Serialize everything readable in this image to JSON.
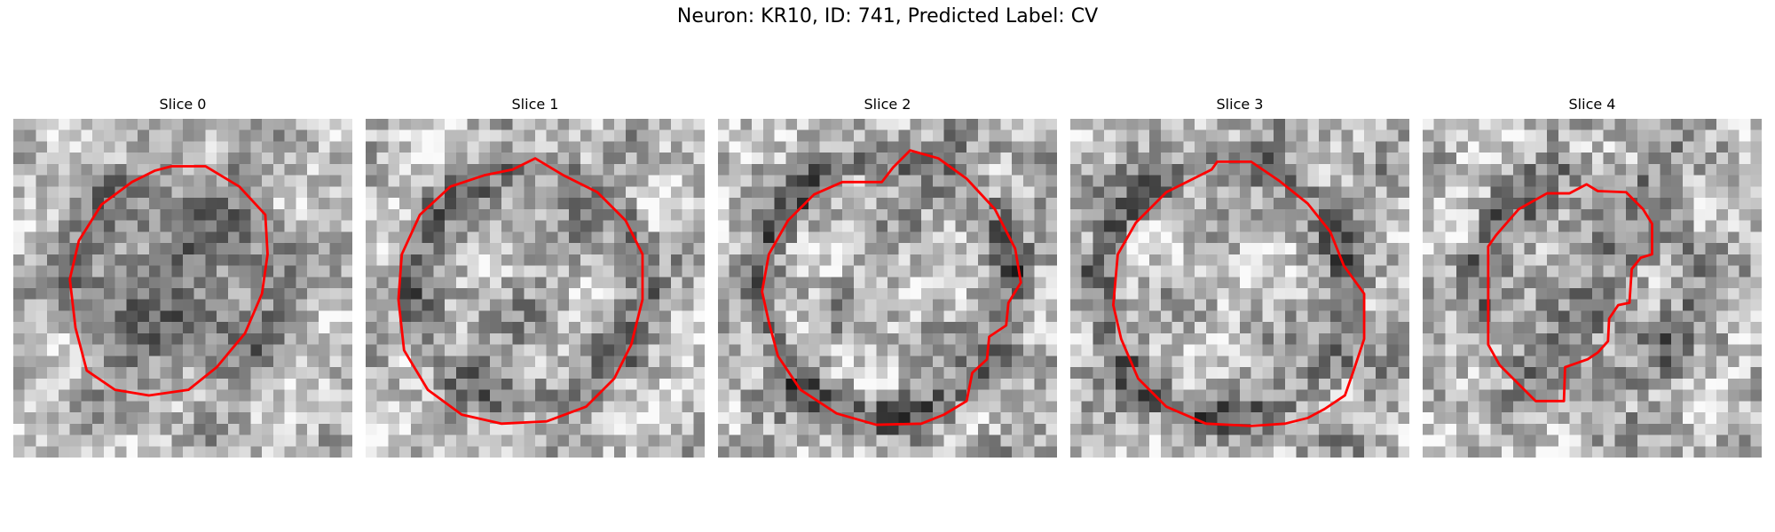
{
  "figure": {
    "title": "Neuron: KR10, ID: 741, Predicted Label: CV"
  },
  "slices": [
    {
      "title": "Slice 0"
    },
    {
      "title": "Slice 1"
    },
    {
      "title": "Slice 2"
    },
    {
      "title": "Slice 3"
    },
    {
      "title": "Slice 4"
    }
  ],
  "colors": {
    "contour": "#ff0000",
    "background": "#ffffff"
  }
}
